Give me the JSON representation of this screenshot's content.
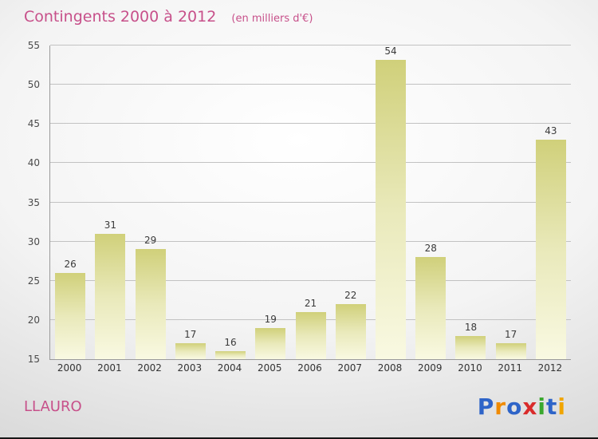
{
  "header": {
    "title": "Contingents 2000 à 2012",
    "subtitle": "(en milliers d'€)"
  },
  "footer": {
    "location": "LLAURO",
    "brand": "Proxiti"
  },
  "logo": {
    "letters": [
      {
        "ch": "P",
        "color": "#2e64c8"
      },
      {
        "ch": "r",
        "color": "#f08a00"
      },
      {
        "ch": "o",
        "color": "#2e64c8"
      },
      {
        "ch": "x",
        "color": "#d92b2b"
      },
      {
        "ch": "i",
        "color": "#3aa82e"
      },
      {
        "ch": "t",
        "color": "#2e64c8"
      },
      {
        "ch": "i",
        "color": "#f0a500"
      }
    ]
  },
  "colors": {
    "title_pink": "#c7508a",
    "bar_top": "#d0d07a",
    "bar_bottom": "#f9f9e2",
    "gridline": "#c2c2c2",
    "axis": "#9a9a9a"
  },
  "chart_data": {
    "type": "bar",
    "title": "Contingents 2000 à 2012",
    "subtitle": "(en milliers d'€)",
    "categories": [
      "2000",
      "2001",
      "2002",
      "2003",
      "2004",
      "2005",
      "2006",
      "2007",
      "2008",
      "2009",
      "2010",
      "2011",
      "2012"
    ],
    "values": [
      26,
      31,
      29,
      17,
      16,
      19,
      21,
      22,
      54,
      28,
      18,
      17,
      43
    ],
    "xlabel": "",
    "ylabel": "",
    "ylim": [
      15,
      55
    ],
    "ytick_step": 5,
    "yticks": [
      15,
      20,
      25,
      30,
      35,
      40,
      45,
      50,
      55
    ],
    "grid": true,
    "legend": "none",
    "value_labels": true
  }
}
